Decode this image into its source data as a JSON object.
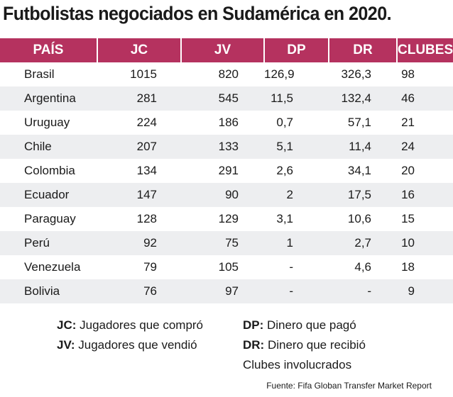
{
  "chart_data": {
    "type": "table",
    "title": "Futbolistas negociados en Sudamérica en 2020.",
    "columns": [
      "PAÍS",
      "JC",
      "JV",
      "DP",
      "DR",
      "CLUBES"
    ],
    "rows": [
      [
        "Brasil",
        "1015",
        "820",
        "126,9",
        "326,3",
        "98"
      ],
      [
        "Argentina",
        "281",
        "545",
        "11,5",
        "132,4",
        "46"
      ],
      [
        "Uruguay",
        "224",
        "186",
        "0,7",
        "57,1",
        "21"
      ],
      [
        "Chile",
        "207",
        "133",
        "5,1",
        "11,4",
        "24"
      ],
      [
        "Colombia",
        "134",
        "291",
        "2,6",
        "34,1",
        "20"
      ],
      [
        "Ecuador",
        "147",
        "90",
        "2",
        "17,5",
        "16"
      ],
      [
        "Paraguay",
        "128",
        "129",
        "3,1",
        "10,6",
        "15"
      ],
      [
        "Perú",
        "92",
        "75",
        "1",
        "2,7",
        "10"
      ],
      [
        "Venezuela",
        "79",
        "105",
        "-",
        "4,6",
        "18"
      ],
      [
        "Bolivia",
        "76",
        "97",
        "-",
        "-",
        "9"
      ]
    ]
  },
  "legend": {
    "jc_key": "JC:",
    "jc_text": " Jugadores que compró",
    "jv_key": "JV:",
    "jv_text": " Jugadores que vendió",
    "dp_key": "DP:",
    "dp_text": " Dinero que pagó",
    "dr_key": "DR:",
    "dr_text": " Dinero que recibió",
    "clubes_text": "Clubes involucrados"
  },
  "source": "Fuente:  Fifa Globan Transfer Market Report",
  "colors": {
    "header_bg": "#b5325f",
    "stripe": "#edeef0"
  }
}
